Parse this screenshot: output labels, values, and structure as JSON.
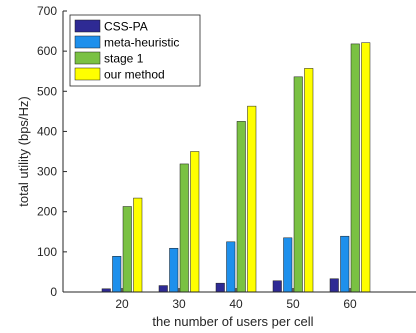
{
  "chart_data": {
    "type": "bar",
    "title": "",
    "xlabel": "the number of users per cell",
    "ylabel": "total utility (bps/Hz)",
    "categories": [
      "20",
      "30",
      "40",
      "50",
      "60"
    ],
    "ylim": [
      0,
      700
    ],
    "yticks": [
      0,
      100,
      200,
      300,
      400,
      500,
      600,
      700
    ],
    "grid": false,
    "legend_position": "top-left",
    "series": [
      {
        "name": "CSS-PA",
        "color": "#2e2a94",
        "values": [
          8,
          16,
          22,
          28,
          33
        ]
      },
      {
        "name": "meta-heuristic",
        "color": "#1e90ec",
        "values": [
          89,
          109,
          125,
          135,
          139
        ]
      },
      {
        "name": "stage 1",
        "color": "#7ac143",
        "values": [
          213,
          319,
          425,
          536,
          618
        ]
      },
      {
        "name": "our method",
        "color": "#ffff00",
        "values": [
          234,
          350,
          463,
          557,
          621
        ]
      }
    ]
  }
}
